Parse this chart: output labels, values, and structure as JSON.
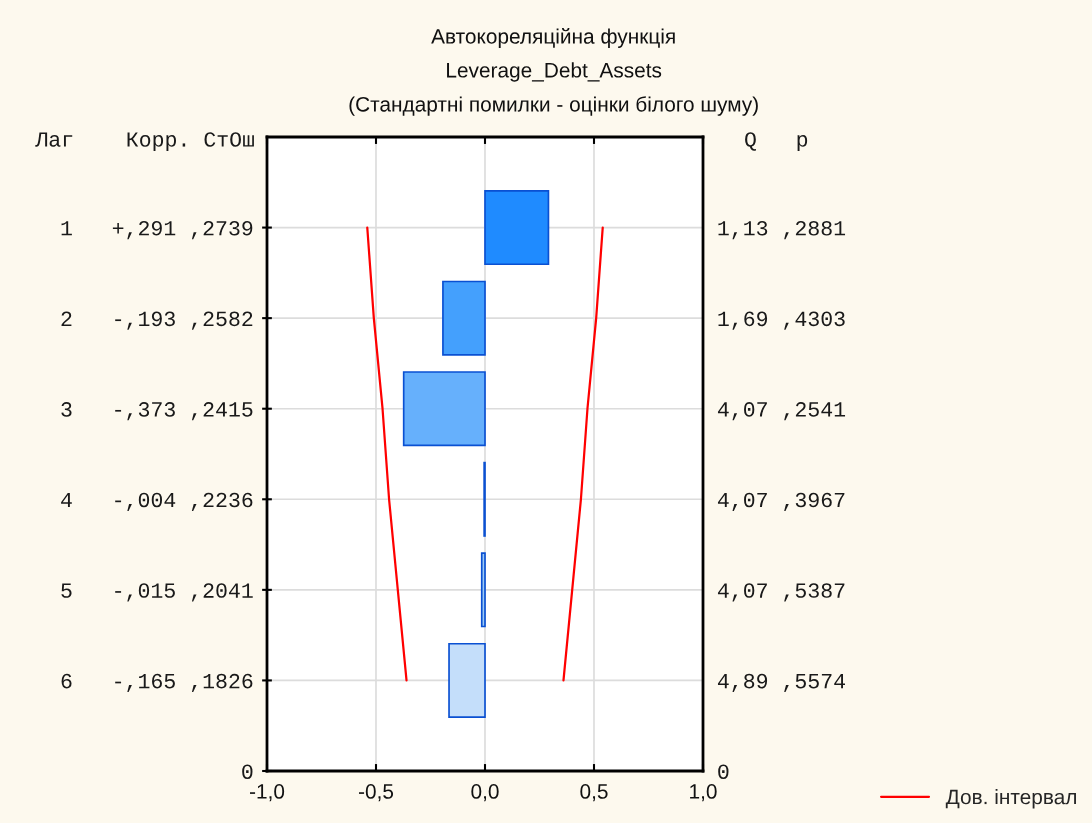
{
  "chart_data": {
    "type": "bar",
    "orientation": "horizontal",
    "title": "Автокореляційна функція",
    "subtitle": "Leverage_Debt_Assets\n(Стандартні помилки - оцінки білого шуму)",
    "ylabel": "Лаг    Корр. СтОш",
    "y2label": "Q   p",
    "categories": [
      "1   +,291 ,2739",
      "2   -,193 ,2582",
      "3   -,373 ,2415",
      "4   -,004 ,2236",
      "5   -,015 ,2041",
      "6   -,165 ,1826",
      "0"
    ],
    "y2_categories": [
      "1,13 ,2881",
      "1,69 ,4303",
      "4,07 ,2541",
      "4,07 ,3967",
      "4,07 ,5387",
      "4,89 ,5574",
      "0"
    ],
    "series": [
      {
        "colors": [
          "#1f8bff",
          "#44a0fd",
          "#66b0fc",
          "#2a7de8",
          "#9dcaf6",
          "#c4defa",
          null
        ],
        "values": [
          0.291,
          -0.193,
          -0.373,
          -0.004,
          -0.015,
          -0.165,
          null
        ]
      },
      {
        "type": "line",
        "name": "Дов. інтервал",
        "color": "#ff0000",
        "values": [
          0.54,
          0.51,
          0.47,
          0.44,
          0.4,
          0.36,
          null
        ]
      },
      {
        "type": "line",
        "color": "#ff0000",
        "values": [
          -0.54,
          -0.51,
          -0.47,
          -0.44,
          -0.4,
          -0.36,
          null
        ]
      }
    ],
    "xlim": [
      -1,
      1
    ],
    "xticks": [
      {
        "value": -1,
        "label": "-1,0"
      },
      {
        "value": -0.5,
        "label": "-0,5"
      },
      {
        "value": 0,
        "label": "0,0"
      },
      {
        "value": 0.5,
        "label": "0,5"
      },
      {
        "value": 1,
        "label": "1,0"
      }
    ],
    "grid": true,
    "legend": "bottom right"
  }
}
